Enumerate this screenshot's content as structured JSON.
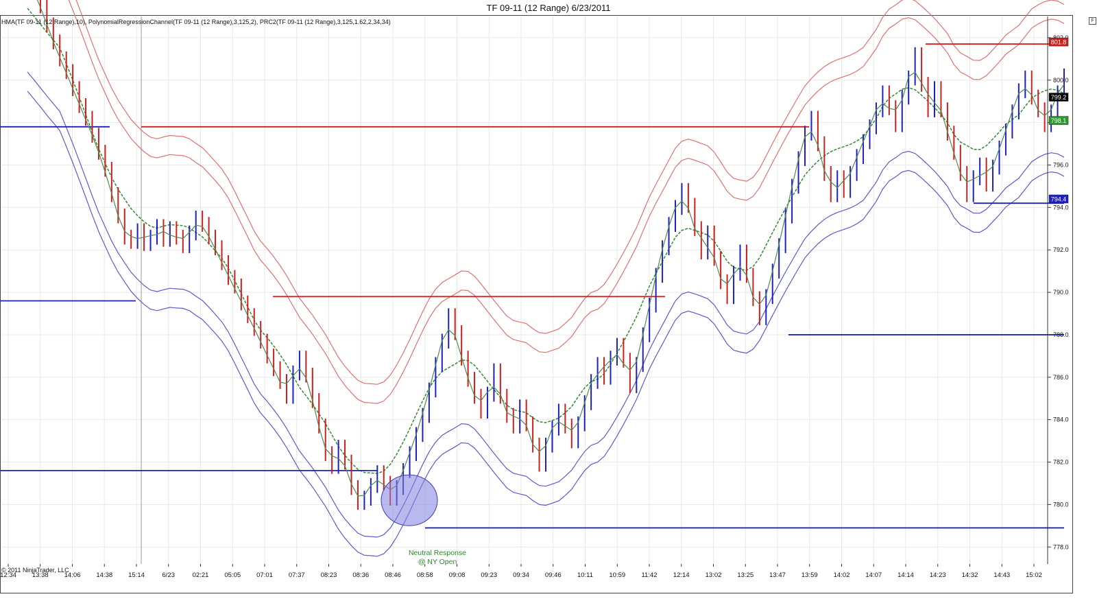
{
  "title": "TF 09-11 (12 Range)  6/23/2011",
  "legend_text": "HMA(TF 09-11 (12 Range),10), PolynomialRegressionChannel(TF 09-11 (12 Range),3,125,2), PRC2(TF 09-11 (12 Range),3,125,1.62,2,34,34)",
  "copyright": "© 2011 NinjaTrader, LLC",
  "annotation_line1": "Neutral Response",
  "annotation_line2": "@ NY Open",
  "corner_button": "F",
  "colors": {
    "up_bar": "#1f1fbf",
    "down_bar": "#cc1f1f",
    "upper_band": "#e07070",
    "lower_band": "#5a5ad0",
    "mid_line": "#2e8b2e",
    "hma": "#4f8a4f",
    "grid": "#e8e8e8",
    "highlight_circle": "#7f7fe0"
  },
  "chart_data": {
    "type": "line",
    "ylim": [
      777.2,
      803.0
    ],
    "yticks": [
      "778.0",
      "780.0",
      "782.0",
      "784.0",
      "786.0",
      "788.0",
      "790.0",
      "792.0",
      "794.0",
      "796.0",
      "798.0",
      "800.0",
      "802.0"
    ],
    "xticks": [
      "12:34",
      "13:38",
      "14:06",
      "14:38",
      "15:14",
      "6/23",
      "02:21",
      "05:05",
      "07:01",
      "07:37",
      "08:23",
      "08:36",
      "08:46",
      "08:58",
      "09:08",
      "09:23",
      "09:34",
      "09:46",
      "10:11",
      "10:59",
      "11:42",
      "12:14",
      "13:02",
      "13:25",
      "13:47",
      "13:59",
      "14:02",
      "14:07",
      "14:14",
      "14:23",
      "14:32",
      "14:43",
      "15:02"
    ],
    "price_labels": [
      {
        "text": "801.8",
        "value": 801.8,
        "color": "#cc1f1f"
      },
      {
        "text": "799.2",
        "value": 799.2,
        "color": "#000000"
      },
      {
        "text": "798.1",
        "value": 798.1,
        "color": "#2e9a2e"
      },
      {
        "text": "794.4",
        "value": 794.4,
        "color": "#1f1fbf"
      }
    ],
    "bar_closes": [
      804.8,
      804.2,
      803.5,
      802.6,
      801.8,
      801.0,
      800.4,
      799.6,
      798.8,
      798.2,
      797.4,
      796.6,
      795.8,
      794.6,
      793.6,
      792.6,
      792.4,
      792.9,
      792.3,
      792.6,
      793.1,
      792.5,
      793.0,
      792.6,
      792.2,
      792.8,
      793.5,
      793.2,
      792.6,
      792.1,
      791.4,
      790.7,
      790.3,
      789.5,
      788.9,
      788.3,
      787.7,
      787.0,
      786.4,
      785.8,
      785.1,
      786.2,
      786.9,
      786.1,
      784.9,
      783.7,
      782.4,
      781.8,
      782.7,
      782.0,
      780.8,
      780.1,
      780.3,
      780.9,
      781.5,
      781.0,
      780.3,
      780.8,
      781.6,
      782.4,
      783.3,
      784.2,
      785.4,
      786.6,
      787.7,
      788.9,
      788.1,
      786.9,
      785.9,
      785.1,
      784.4,
      785.2,
      786.3,
      785.1,
      784.2,
      783.7,
      784.6,
      783.8,
      782.8,
      781.9,
      782.8,
      783.6,
      784.4,
      783.7,
      783.0,
      783.8,
      784.8,
      785.8,
      786.6,
      786.0,
      786.9,
      787.5,
      786.8,
      785.6,
      786.6,
      788.0,
      789.4,
      790.8,
      792.1,
      793.2,
      794.0,
      794.8,
      794.1,
      793.0,
      791.9,
      792.8,
      791.6,
      790.5,
      789.8,
      790.9,
      791.9,
      790.8,
      789.7,
      788.8,
      789.8,
      791.0,
      792.2,
      793.6,
      795.0,
      796.3,
      797.5,
      798.2,
      797.0,
      795.6,
      794.6,
      795.4,
      794.8,
      795.6,
      796.4,
      797.1,
      797.8,
      798.6,
      799.4,
      798.7,
      797.9,
      799.2,
      800.1,
      801.2,
      799.8,
      798.6,
      799.6,
      798.6,
      797.5,
      796.6,
      795.6,
      794.6,
      795.4,
      796.0,
      795.1,
      795.9,
      796.8,
      797.6,
      798.5,
      799.5,
      800.1,
      799.2,
      798.6,
      797.9,
      798.5,
      799.4,
      800.2
    ]
  }
}
